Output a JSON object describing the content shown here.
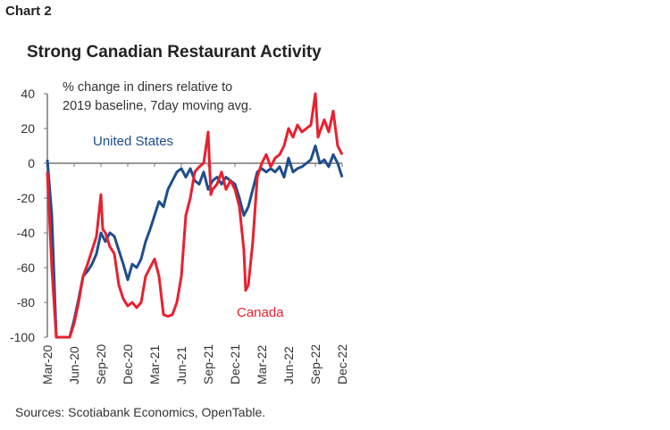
{
  "chart_label": "Chart 2",
  "chart_data": {
    "type": "line",
    "title": "Strong Canadian Restaurant Activity",
    "annotation": [
      "% change in diners relative to",
      "2019 baseline, 7day moving avg."
    ],
    "source": "Sources: Scotiabank Economics, OpenTable.",
    "ylim": [
      -100,
      40
    ],
    "yticks": [
      40,
      20,
      0,
      -20,
      -40,
      -60,
      -80,
      -100
    ],
    "xtick_labels": [
      "Mar-20",
      "Jun-20",
      "Sep-20",
      "Dec-20",
      "Mar-21",
      "Jun-21",
      "Sep-21",
      "Dec-21",
      "Mar-22",
      "Jun-22",
      "Sep-22",
      "Dec-22"
    ],
    "x_unit": "months since Mar-20",
    "series": [
      {
        "name": "United States",
        "color": "#1f4e8c",
        "x": [
          0,
          0.5,
          1,
          2,
          2.5,
          3,
          3.5,
          4,
          4.5,
          5,
          5.5,
          6,
          6.5,
          7,
          7.5,
          8,
          8.5,
          9,
          9.5,
          10,
          10.5,
          11,
          11.5,
          12,
          12.5,
          13,
          13.5,
          14,
          14.5,
          15,
          15.5,
          16,
          16.5,
          17,
          17.5,
          18,
          18.5,
          19,
          19.5,
          20,
          20.5,
          21,
          21.5,
          22,
          22.5,
          23,
          23.5,
          24,
          24.5,
          25,
          25.5,
          26,
          26.5,
          27,
          27.5,
          28,
          28.5,
          29,
          29.5,
          30,
          30.5,
          31,
          31.5,
          32,
          32.5,
          33
        ],
        "y": [
          2,
          -30,
          -100,
          -100,
          -100,
          -90,
          -78,
          -65,
          -62,
          -58,
          -52,
          -40,
          -45,
          -40,
          -42,
          -50,
          -58,
          -67,
          -58,
          -60,
          -55,
          -45,
          -38,
          -30,
          -22,
          -25,
          -15,
          -10,
          -5,
          -3,
          -8,
          -3,
          -10,
          -12,
          -5,
          -15,
          -10,
          -8,
          -12,
          -8,
          -10,
          -12,
          -20,
          -30,
          -25,
          -15,
          -5,
          -3,
          -5,
          -3,
          -5,
          -2,
          -8,
          3,
          -5,
          -3,
          -2,
          0,
          2,
          10,
          0,
          2,
          -2,
          5,
          0,
          -8
        ]
      },
      {
        "name": "Canada",
        "color": "#e8202f",
        "x": [
          0,
          0.5,
          1,
          2,
          2.5,
          3,
          3.5,
          4,
          4.5,
          5,
          5.5,
          6,
          6.2,
          6.5,
          7,
          7.5,
          8,
          8.5,
          9,
          9.5,
          10,
          10.5,
          11,
          11.5,
          12,
          12.5,
          13,
          13.5,
          14,
          14.5,
          15,
          15.5,
          16,
          16.5,
          17,
          17.5,
          18,
          18.3,
          18.5,
          19,
          19.5,
          20,
          20.5,
          21,
          21.5,
          22,
          22.2,
          22.5,
          23,
          23.5,
          24,
          24.5,
          25,
          25.5,
          26,
          26.5,
          27,
          27.5,
          28,
          28.5,
          29,
          29.5,
          30,
          30.3,
          30.5,
          31,
          31.5,
          32,
          32.5,
          33
        ],
        "y": [
          -5,
          -60,
          -100,
          -100,
          -100,
          -92,
          -80,
          -65,
          -58,
          -50,
          -42,
          -18,
          -38,
          -40,
          -48,
          -52,
          -70,
          -78,
          -82,
          -80,
          -83,
          -80,
          -65,
          -60,
          -55,
          -65,
          -87,
          -88,
          -87,
          -80,
          -65,
          -30,
          -20,
          -5,
          -2,
          0,
          18,
          -18,
          -15,
          -12,
          -5,
          -15,
          -10,
          -15,
          -25,
          -50,
          -73,
          -70,
          -45,
          -8,
          0,
          5,
          -2,
          3,
          5,
          10,
          20,
          15,
          22,
          18,
          20,
          22,
          40,
          15,
          18,
          25,
          18,
          30,
          10,
          5
        ]
      }
    ]
  }
}
